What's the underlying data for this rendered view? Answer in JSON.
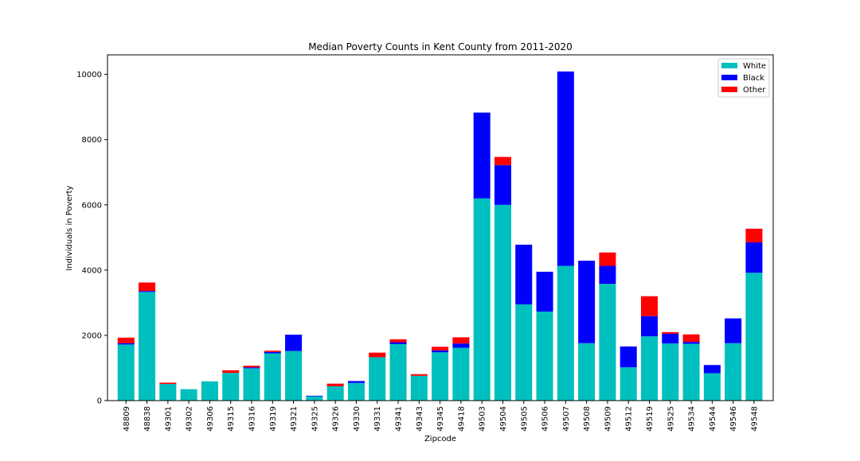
{
  "chart_data": {
    "type": "bar",
    "stacked": true,
    "title": "Median Poverty Counts in Kent County from 2011-2020",
    "xlabel": "Zipcode",
    "ylabel": "Individuals in Poverty",
    "ylim": [
      0,
      10600
    ],
    "yticks": [
      0,
      2000,
      4000,
      6000,
      8000,
      10000
    ],
    "grid": false,
    "legend_position": "top-right",
    "categories": [
      "48809",
      "48838",
      "49301",
      "49302",
      "49306",
      "49315",
      "49316",
      "49319",
      "49321",
      "49325",
      "49326",
      "49330",
      "49331",
      "49341",
      "49343",
      "49345",
      "49418",
      "49503",
      "49504",
      "49505",
      "49506",
      "49507",
      "49508",
      "49509",
      "49512",
      "49519",
      "49525",
      "49534",
      "49544",
      "49546",
      "49548"
    ],
    "series": [
      {
        "name": "White",
        "color": "#00bfbf",
        "values": [
          1720,
          3330,
          510,
          350,
          590,
          850,
          990,
          1450,
          1520,
          130,
          440,
          540,
          1330,
          1730,
          760,
          1480,
          1620,
          6200,
          6000,
          2950,
          2730,
          4130,
          1760,
          3580,
          1020,
          1970,
          1750,
          1740,
          840,
          1760,
          3920
        ]
      },
      {
        "name": "Black",
        "color": "#0000ff",
        "values": [
          40,
          30,
          0,
          0,
          0,
          0,
          30,
          40,
          500,
          20,
          0,
          60,
          0,
          60,
          0,
          60,
          130,
          2630,
          1220,
          1830,
          1220,
          5960,
          2530,
          550,
          640,
          620,
          300,
          60,
          250,
          760,
          930
        ]
      },
      {
        "name": "Other",
        "color": "#ff0000",
        "values": [
          170,
          260,
          40,
          0,
          0,
          80,
          50,
          40,
          0,
          0,
          80,
          0,
          140,
          90,
          50,
          110,
          190,
          0,
          250,
          0,
          0,
          0,
          0,
          410,
          0,
          610,
          50,
          230,
          0,
          0,
          420
        ]
      }
    ]
  }
}
